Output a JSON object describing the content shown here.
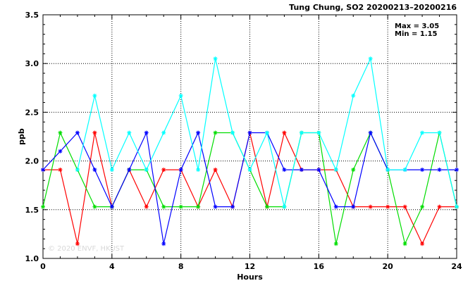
{
  "chart_data": {
    "type": "line",
    "title": "Tung Chung, SO2 20200213–20200216",
    "xlabel": "Hours",
    "ylabel": "ppb",
    "xlim": [
      0,
      24
    ],
    "ylim": [
      1.0,
      3.5
    ],
    "xticks": [
      0,
      4,
      8,
      12,
      16,
      20,
      24
    ],
    "yticks": [
      1.0,
      1.5,
      2.0,
      2.5,
      3.0,
      3.5
    ],
    "ytick_labels": [
      "1.0",
      "1.5",
      "2.0",
      "2.5",
      "3.0",
      "3.5"
    ],
    "grid": "dotted at major ticks",
    "annotations": {
      "max_text": "Max = 3.05",
      "min_text": "Min = 1.15",
      "watermark": "© 2020 ENVF, HKUST"
    },
    "x": [
      0,
      1,
      2,
      3,
      4,
      5,
      6,
      7,
      8,
      9,
      10,
      11,
      12,
      13,
      14,
      15,
      16,
      17,
      18,
      19,
      20,
      21,
      22,
      23,
      24
    ],
    "series": [
      {
        "color": "#ff0000",
        "values": [
          1.91,
          1.91,
          1.15,
          2.29,
          1.53,
          1.91,
          1.53,
          1.91,
          1.91,
          1.53,
          1.91,
          1.53,
          2.29,
          1.53,
          2.29,
          1.91,
          1.91,
          1.91,
          1.53,
          1.53,
          1.53,
          1.53,
          1.15,
          1.53,
          1.53
        ]
      },
      {
        "color": "#00dd00",
        "values": [
          1.53,
          2.29,
          1.91,
          1.53,
          1.53,
          1.91,
          1.91,
          1.53,
          1.53,
          1.53,
          2.29,
          2.29,
          1.91,
          1.53,
          1.53,
          2.29,
          2.29,
          1.15,
          1.91,
          2.29,
          1.91,
          1.15,
          1.53,
          2.29,
          1.53
        ]
      },
      {
        "color": "#0000ff",
        "values": [
          1.91,
          2.1,
          2.29,
          1.91,
          1.53,
          1.91,
          2.29,
          1.15,
          1.91,
          2.29,
          1.53,
          1.53,
          2.29,
          2.29,
          1.91,
          1.91,
          1.91,
          1.53,
          1.53,
          2.29,
          1.91,
          1.91,
          1.91,
          1.91,
          1.91
        ]
      },
      {
        "color": "#00ffff",
        "values": [
          null,
          null,
          1.91,
          2.67,
          1.91,
          2.29,
          1.91,
          2.29,
          2.67,
          1.91,
          3.05,
          2.29,
          1.91,
          2.29,
          1.53,
          2.29,
          2.29,
          1.91,
          2.67,
          3.05,
          1.91,
          1.91,
          2.29,
          2.29,
          1.53
        ]
      }
    ]
  }
}
